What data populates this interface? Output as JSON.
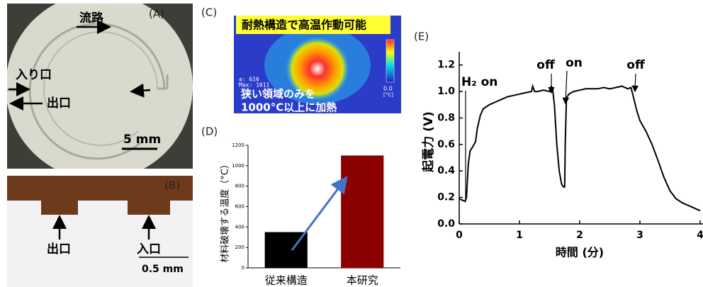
{
  "photo_a": {
    "label": "(A)",
    "channel": "流路",
    "inlet": "入り口",
    "outlet": "出口",
    "scale": "5 mm"
  },
  "photo_b": {
    "label": "(B)",
    "outlet": "出口",
    "inlet": "入口",
    "scale": "0.5 mm"
  },
  "thermal_c": {
    "label": "(C)",
    "headline": "耐熱構造で高温作動可能",
    "caption": [
      "狭い領域のみを",
      "1000°C以上に加熱"
    ],
    "readout": [
      "a: 616",
      "Max: 1011"
    ],
    "scale_min": "0.0",
    "unit": "[°C]"
  },
  "chart_data": [
    {
      "type": "bar",
      "label": "(D)",
      "y_label": "材料破壊する温度（°C）",
      "categories": [
        "従来構造",
        "本研究"
      ],
      "values": [
        350,
        1100
      ],
      "colors": [
        "#000000",
        "#8b0000"
      ],
      "ylim": [
        0,
        1200
      ],
      "yticks": [
        0,
        200,
        400,
        600,
        800,
        1000,
        1200
      ]
    },
    {
      "type": "line",
      "label": "(E)",
      "x_label": "時間 (分)",
      "y_label": "起電力 (V)",
      "x": [
        0,
        0.05,
        0.1,
        0.12,
        0.15,
        0.18,
        0.22,
        0.27,
        0.3,
        0.35,
        0.4,
        0.5,
        0.6,
        0.7,
        0.8,
        0.9,
        1.0,
        1.1,
        1.2,
        1.22,
        1.25,
        1.3,
        1.4,
        1.5,
        1.53,
        1.55,
        1.58,
        1.62,
        1.66,
        1.7,
        1.73,
        1.75,
        1.76,
        1.78,
        1.82,
        1.9,
        2.0,
        2.1,
        2.2,
        2.3,
        2.4,
        2.5,
        2.6,
        2.7,
        2.8,
        2.85,
        2.88,
        2.95,
        3.0,
        3.1,
        3.2,
        3.3,
        3.4,
        3.5,
        3.6,
        3.7,
        3.8,
        3.9,
        4.0
      ],
      "series": [
        {
          "color": "#000000",
          "values": [
            0.19,
            0.18,
            0.17,
            0.2,
            0.45,
            0.55,
            0.58,
            0.62,
            0.72,
            0.82,
            0.87,
            0.9,
            0.92,
            0.94,
            0.96,
            0.97,
            0.98,
            0.99,
            1.0,
            1.04,
            1.0,
            1.0,
            1.01,
            1.0,
            1.04,
            1.02,
            0.9,
            0.6,
            0.4,
            0.3,
            0.28,
            0.28,
            0.6,
            0.95,
            0.98,
            1.0,
            1.01,
            1.02,
            1.02,
            1.02,
            1.03,
            1.02,
            1.03,
            1.04,
            1.02,
            1.03,
            0.98,
            0.85,
            0.78,
            0.7,
            0.6,
            0.48,
            0.35,
            0.25,
            0.19,
            0.16,
            0.14,
            0.12,
            0.1
          ]
        }
      ],
      "annotations": [
        "H₂ on",
        "off",
        "on",
        "off"
      ],
      "xlim": [
        0,
        4
      ],
      "xticks": [
        0,
        1,
        2,
        3,
        4
      ],
      "ylim": [
        0,
        1.3
      ],
      "yticks": [
        {
          "value": 0,
          "label": "0.0"
        },
        0.2,
        0.4,
        0.6,
        0.8,
        {
          "value": 1,
          "label": "1.0"
        },
        1.2
      ]
    }
  ]
}
